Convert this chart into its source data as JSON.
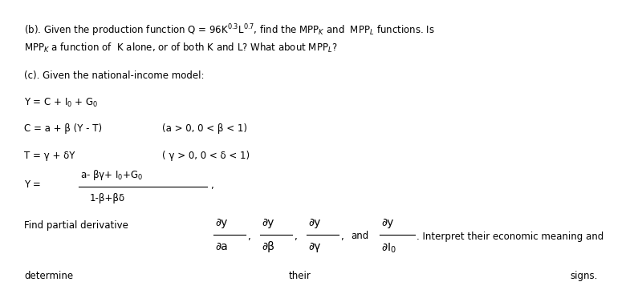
{
  "background_color": "#ffffff",
  "figsize": [
    7.9,
    3.62
  ],
  "dpi": 100,
  "text_color": "#000000",
  "font_size": 8.5,
  "line1": "(b). Given the production function Q = 96K$^{0.3}$L$^{0.7}$, find the MPP$_K$ and  MPP$_L$ functions. Is",
  "line2": "MPP$_K$ a function of  K alone, or of both K and L? What about MPP$_L$?",
  "line3": "(c). Given the national-income model:",
  "line4": "Y = C + I$_0$ + G$_0$",
  "line5a": "C = a + β (Y - T)",
  "line5b": "(a > 0, 0 < β < 1)",
  "line6a": "T = γ + δY",
  "line6b": "( γ > 0, 0 < δ < 1)",
  "frac_label": "Y = ",
  "frac_num": "a- βγ+ I$_0$+G$_0$",
  "frac_den": "1-β+βδ",
  "frac_comma": ",",
  "find_text": "Find partial derivative",
  "partial_num": "∂y",
  "partial_da": "∂a",
  "partial_db": "∂β",
  "partial_dg": "∂γ",
  "partial_dI": "∂I$_0$",
  "and_text": "and",
  "interp_text": ". Interpret their economic meaning and",
  "bottom_left": "determine",
  "bottom_mid": "their",
  "bottom_right": "signs."
}
